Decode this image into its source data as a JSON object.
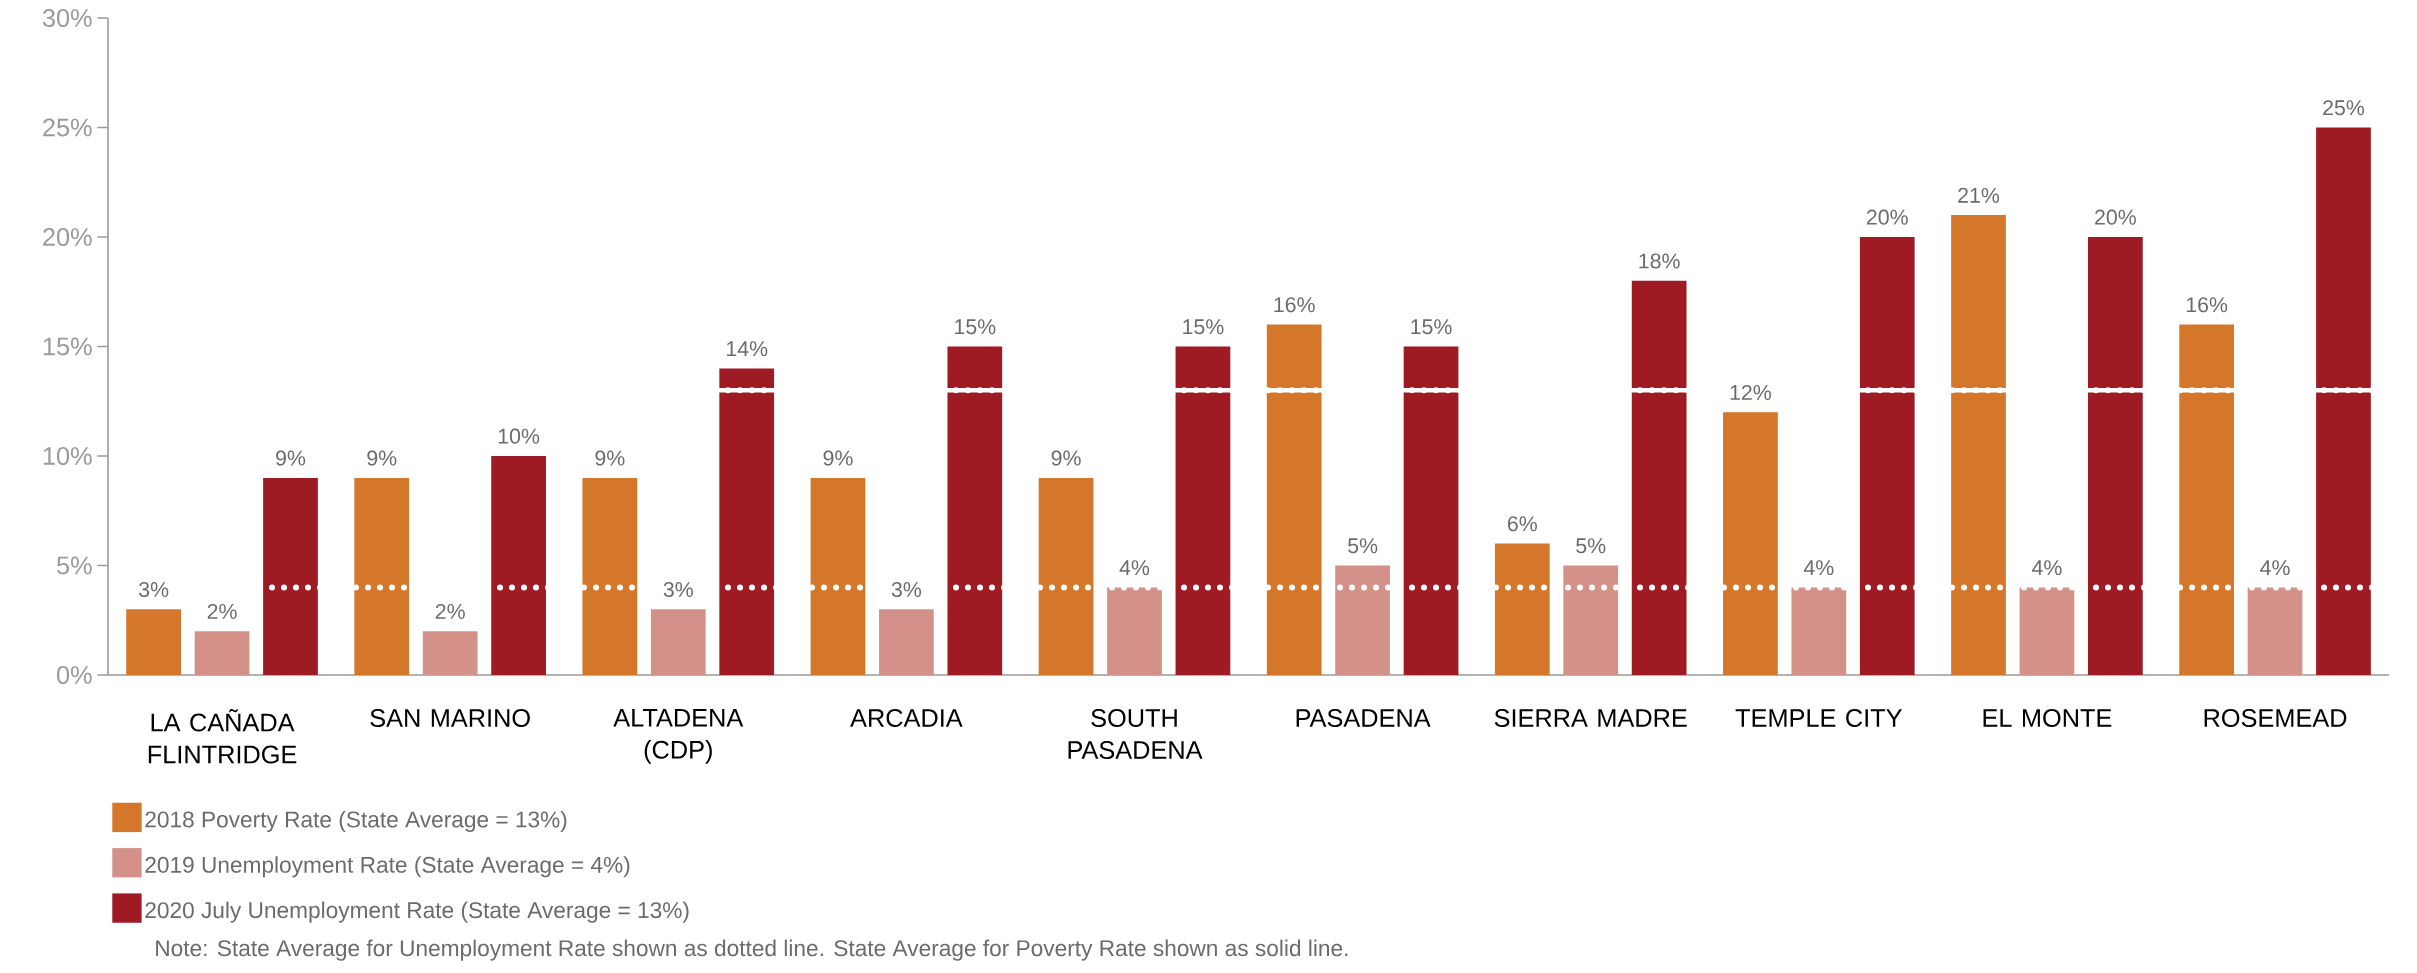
{
  "chart_data": {
    "type": "bar",
    "categories": [
      "LA CAÑADA FLINTRIDGE",
      "SAN MARINO",
      "ALTADENA (CDP)",
      "ARCADIA",
      "SOUTH PASADENA",
      "PASADENA",
      "SIERRA MADRE",
      "TEMPLE CITY",
      "EL MONTE",
      "ROSEMEAD"
    ],
    "series": [
      {
        "name": "2018 Poverty Rate (State Average = 13%)",
        "color": "#d4772a",
        "values": [
          3,
          9,
          9,
          9,
          9,
          16,
          6,
          12,
          21,
          16
        ],
        "value_labels": [
          "3%",
          "9%",
          "9%",
          "9%",
          "9%",
          "16%",
          "6%",
          "12%",
          "21%",
          "16%"
        ]
      },
      {
        "name": "2019 Unemployment Rate (State Average = 4%)",
        "color": "#d4918a",
        "values": [
          2,
          2,
          3,
          3,
          4,
          5,
          5,
          4,
          4,
          4
        ],
        "value_labels": [
          "2%",
          "2%",
          "3%",
          "3%",
          "4%",
          "5%",
          "5%",
          "4%",
          "4%",
          "4%"
        ]
      },
      {
        "name": "2020 July Unemployment Rate (State Average = 13%)",
        "color": "#9e1b24",
        "values": [
          9,
          10,
          14,
          15,
          15,
          15,
          18,
          20,
          20,
          25
        ],
        "value_labels": [
          "9%",
          "10%",
          "14%",
          "15%",
          "15%",
          "15%",
          "18%",
          "20%",
          "20%",
          "25%"
        ]
      }
    ],
    "ylim": [
      0,
      30
    ],
    "yticks": [
      {
        "value": 0,
        "label": "0%"
      },
      {
        "value": 5,
        "label": "5%"
      },
      {
        "value": 10,
        "label": "10%"
      },
      {
        "value": 15,
        "label": "15%"
      },
      {
        "value": 20,
        "label": "20%"
      },
      {
        "value": 25,
        "label": "25%"
      },
      {
        "value": 30,
        "label": "30%"
      }
    ],
    "ref_lines": [
      {
        "axis": "y",
        "value": 13,
        "color": "#ffffff",
        "line_style": "solid"
      },
      {
        "axis": "y",
        "value": 13,
        "color": "#ffffff",
        "line_style": "dotted"
      },
      {
        "axis": "y",
        "value": 4,
        "color": "#ffffff",
        "line_style": "dotted"
      }
    ],
    "legend": "bottom left",
    "grid": false,
    "annotations": [
      "Note:  State Average for Unemployment Rate shown as dotted line. State Average for Poverty Rate shown as solid line."
    ]
  }
}
